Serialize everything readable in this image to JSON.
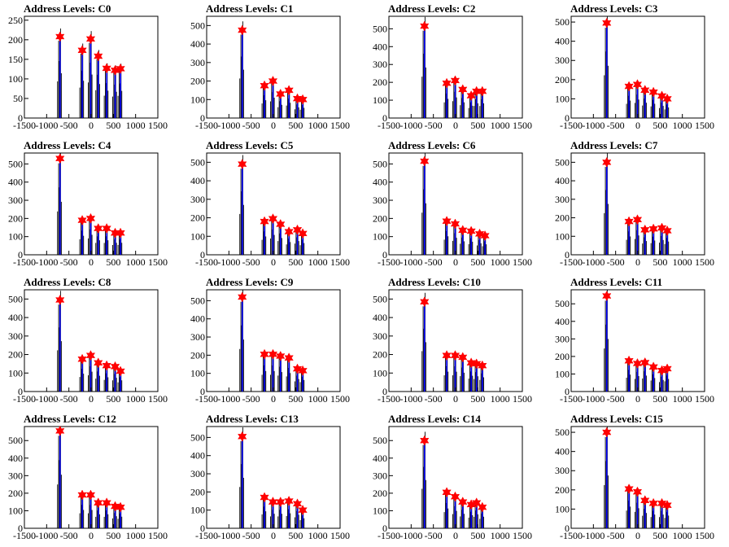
{
  "figure": {
    "colors": {
      "histogram": "#000000",
      "stem": "#0000ff",
      "marker": "#ff0000",
      "frame": "#000000",
      "background": "#ffffff"
    },
    "x_ticks": [
      -1500,
      -1000,
      -500,
      0,
      500,
      1000,
      1500
    ],
    "x_range": [
      -1500,
      1500
    ]
  },
  "chart_data": [
    {
      "title": "Address Levels: C0",
      "type": "bar",
      "ylim": [
        0,
        260
      ],
      "y_ticks": [
        0,
        50,
        100,
        150,
        200,
        250
      ],
      "markers": {
        "x": [
          -700,
          -200,
          -10,
          160,
          350,
          540,
          660
        ],
        "y": [
          208,
          173,
          202,
          158,
          127,
          122,
          126
        ]
      }
    },
    {
      "title": "Address Levels: C1",
      "type": "bar",
      "ylim": [
        0,
        550
      ],
      "y_ticks": [
        0,
        100,
        200,
        300,
        400,
        500
      ],
      "markers": {
        "x": [
          -700,
          -200,
          -10,
          160,
          350,
          540,
          660
        ],
        "y": [
          475,
          175,
          200,
          130,
          150,
          105,
          100
        ]
      }
    },
    {
      "title": "Address Levels: C2",
      "type": "bar",
      "ylim": [
        0,
        570
      ],
      "y_ticks": [
        0,
        100,
        200,
        300,
        400,
        500
      ],
      "markers": {
        "x": [
          -700,
          -200,
          -10,
          160,
          350,
          470,
          600
        ],
        "y": [
          515,
          195,
          210,
          160,
          125,
          150,
          150
        ]
      }
    },
    {
      "title": "Address Levels: C3",
      "type": "bar",
      "ylim": [
        0,
        530
      ],
      "y_ticks": [
        0,
        100,
        200,
        300,
        400,
        500
      ],
      "markers": {
        "x": [
          -700,
          -200,
          -10,
          160,
          350,
          540,
          660
        ],
        "y": [
          495,
          165,
          175,
          145,
          135,
          115,
          100
        ]
      }
    },
    {
      "title": "Address Levels: C4",
      "type": "bar",
      "ylim": [
        0,
        560
      ],
      "y_ticks": [
        0,
        100,
        200,
        300,
        400,
        500
      ],
      "markers": {
        "x": [
          -700,
          -200,
          -10,
          160,
          350,
          540,
          660
        ],
        "y": [
          530,
          190,
          200,
          145,
          145,
          120,
          120
        ]
      }
    },
    {
      "title": "Address Levels: C5",
      "type": "bar",
      "ylim": [
        0,
        550
      ],
      "y_ticks": [
        0,
        100,
        200,
        300,
        400,
        500
      ],
      "markers": {
        "x": [
          -700,
          -200,
          -10,
          160,
          350,
          540,
          660
        ],
        "y": [
          490,
          180,
          195,
          165,
          125,
          135,
          115
        ]
      }
    },
    {
      "title": "Address Levels: C6",
      "type": "bar",
      "ylim": [
        0,
        560
      ],
      "y_ticks": [
        0,
        100,
        200,
        300,
        400,
        500
      ],
      "markers": {
        "x": [
          -700,
          -200,
          -10,
          160,
          350,
          540,
          660
        ],
        "y": [
          515,
          185,
          170,
          135,
          130,
          115,
          105
        ]
      }
    },
    {
      "title": "Address Levels: C7",
      "type": "bar",
      "ylim": [
        0,
        550
      ],
      "y_ticks": [
        0,
        100,
        200,
        300,
        400,
        500
      ],
      "markers": {
        "x": [
          -700,
          -200,
          -10,
          160,
          350,
          540,
          660
        ],
        "y": [
          500,
          180,
          190,
          135,
          140,
          145,
          130
        ]
      }
    },
    {
      "title": "Address Levels: C8",
      "type": "bar",
      "ylim": [
        0,
        550
      ],
      "y_ticks": [
        0,
        100,
        200,
        300,
        400,
        500
      ],
      "markers": {
        "x": [
          -700,
          -200,
          -10,
          160,
          350,
          540,
          660
        ],
        "y": [
          495,
          175,
          195,
          155,
          140,
          135,
          110
        ]
      }
    },
    {
      "title": "Address Levels: C9",
      "type": "bar",
      "ylim": [
        0,
        560
      ],
      "y_ticks": [
        0,
        100,
        200,
        300,
        400,
        500
      ],
      "markers": {
        "x": [
          -700,
          -200,
          -10,
          160,
          350,
          540,
          660
        ],
        "y": [
          520,
          205,
          205,
          195,
          185,
          125,
          115
        ]
      }
    },
    {
      "title": "Address Levels: C10",
      "type": "bar",
      "ylim": [
        0,
        550
      ],
      "y_ticks": [
        0,
        100,
        200,
        300,
        400,
        500
      ],
      "markers": {
        "x": [
          -700,
          -200,
          -10,
          160,
          350,
          470,
          600
        ],
        "y": [
          485,
          195,
          195,
          185,
          155,
          150,
          140
        ]
      }
    },
    {
      "title": "Address Levels: C11",
      "type": "bar",
      "ylim": [
        0,
        580
      ],
      "y_ticks": [
        0,
        100,
        200,
        300,
        400,
        500
      ],
      "markers": {
        "x": [
          -700,
          -200,
          -10,
          160,
          350,
          540,
          660
        ],
        "y": [
          545,
          175,
          160,
          165,
          140,
          120,
          130
        ]
      }
    },
    {
      "title": "Address Levels: C12",
      "type": "bar",
      "ylim": [
        0,
        580
      ],
      "y_ticks": [
        0,
        100,
        200,
        300,
        400,
        500
      ],
      "markers": {
        "x": [
          -700,
          -200,
          -10,
          160,
          350,
          540,
          660
        ],
        "y": [
          555,
          190,
          190,
          145,
          145,
          125,
          120
        ]
      }
    },
    {
      "title": "Address Levels: C13",
      "type": "bar",
      "ylim": [
        0,
        560
      ],
      "y_ticks": [
        0,
        100,
        200,
        300,
        400,
        500
      ],
      "markers": {
        "x": [
          -700,
          -200,
          -10,
          160,
          350,
          540,
          660
        ],
        "y": [
          505,
          170,
          145,
          145,
          150,
          135,
          100
        ]
      }
    },
    {
      "title": "Address Levels: C14",
      "type": "bar",
      "ylim": [
        0,
        580
      ],
      "y_ticks": [
        0,
        100,
        200,
        300,
        400,
        500
      ],
      "markers": {
        "x": [
          -700,
          -200,
          -10,
          160,
          350,
          470,
          600
        ],
        "y": [
          500,
          205,
          180,
          150,
          135,
          145,
          120
        ]
      }
    },
    {
      "title": "Address Levels: C15",
      "type": "bar",
      "ylim": [
        0,
        530
      ],
      "y_ticks": [
        0,
        100,
        200,
        300,
        400,
        500
      ],
      "markers": {
        "x": [
          -700,
          -200,
          -10,
          160,
          350,
          540,
          660
        ],
        "y": [
          500,
          205,
          190,
          145,
          130,
          130,
          120
        ]
      }
    }
  ]
}
